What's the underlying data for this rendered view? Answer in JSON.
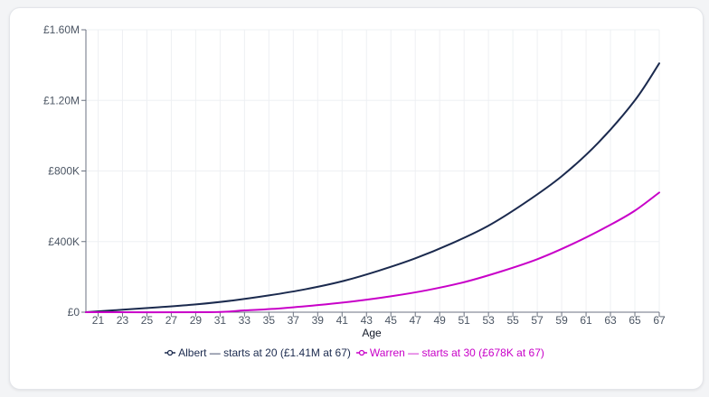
{
  "chart_data": {
    "type": "line",
    "xlabel": "Age",
    "ylabel": "",
    "xlim": [
      20,
      67
    ],
    "ylim": [
      0,
      1600000
    ],
    "x_ticks": [
      "21",
      "23",
      "25",
      "27",
      "29",
      "31",
      "33",
      "35",
      "37",
      "39",
      "41",
      "43",
      "45",
      "47",
      "49",
      "51",
      "53",
      "55",
      "57",
      "59",
      "61",
      "63",
      "65",
      "67"
    ],
    "y_ticks": [
      "£0",
      "£400K",
      "£800K",
      "£1.20M",
      "£1.60M"
    ],
    "grid": true,
    "legend_position": "bottom",
    "series": [
      {
        "name": "Albert — starts at 20 (£1.41M at 67)",
        "color": "#1b2a4e",
        "points": [
          [
            20,
            0
          ],
          [
            23,
            14000
          ],
          [
            26,
            28000
          ],
          [
            29,
            44000
          ],
          [
            32,
            66000
          ],
          [
            35,
            95000
          ],
          [
            38,
            130000
          ],
          [
            41,
            175000
          ],
          [
            44,
            235000
          ],
          [
            47,
            305000
          ],
          [
            50,
            390000
          ],
          [
            53,
            490000
          ],
          [
            56,
            620000
          ],
          [
            59,
            770000
          ],
          [
            62,
            960000
          ],
          [
            65,
            1200000
          ],
          [
            67,
            1410000
          ]
        ]
      },
      {
        "name": "Warren — starts at 30 (£678K at 67)",
        "color": "#c800c8",
        "points": [
          [
            20,
            0
          ],
          [
            30,
            0
          ],
          [
            33,
            10000
          ],
          [
            36,
            22000
          ],
          [
            39,
            40000
          ],
          [
            42,
            62000
          ],
          [
            45,
            90000
          ],
          [
            48,
            125000
          ],
          [
            51,
            170000
          ],
          [
            54,
            230000
          ],
          [
            57,
            300000
          ],
          [
            60,
            390000
          ],
          [
            63,
            495000
          ],
          [
            65,
            575000
          ],
          [
            67,
            678000
          ]
        ]
      }
    ]
  }
}
